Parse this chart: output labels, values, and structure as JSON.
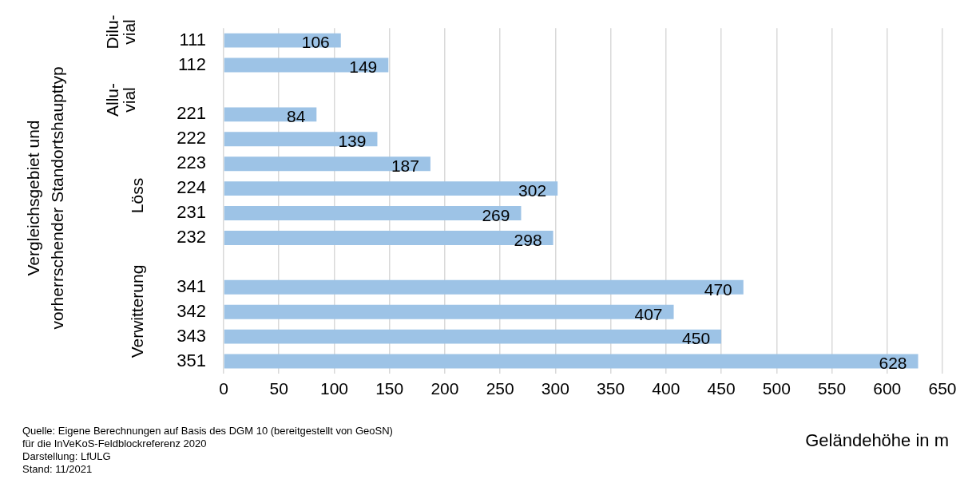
{
  "chart_data": {
    "type": "bar",
    "orientation": "horizontal",
    "categories": [
      "111",
      "112",
      null,
      "221",
      "222",
      "223",
      "224",
      "231",
      "232",
      null,
      "341",
      "342",
      "343",
      "351"
    ],
    "values": [
      106,
      149,
      null,
      84,
      139,
      187,
      302,
      269,
      298,
      null,
      470,
      407,
      450,
      628
    ],
    "color": "#9dc3e6",
    "xlim": [
      0,
      650
    ],
    "xticks": [
      0,
      50,
      100,
      150,
      200,
      250,
      300,
      350,
      400,
      450,
      500,
      550,
      600,
      650
    ],
    "xlabel": "Geländehöhe in m",
    "grid": "x",
    "legend": false,
    "data_labels": true,
    "annotations": [
      "Vergleichsgebiet und vorherrschender Standortshaupttyp",
      "Dilu- vial",
      "Allu- vial",
      "Löss",
      "Verwitterung",
      "Quelle: Eigene Berechnungen auf Basis des DGM 10 (bereitgestellt von GeoSN) für die InVeKoS-Feldblockreferenz 2020",
      "Darstellung: LfULG",
      "Stand: 11/2021"
    ]
  }
}
